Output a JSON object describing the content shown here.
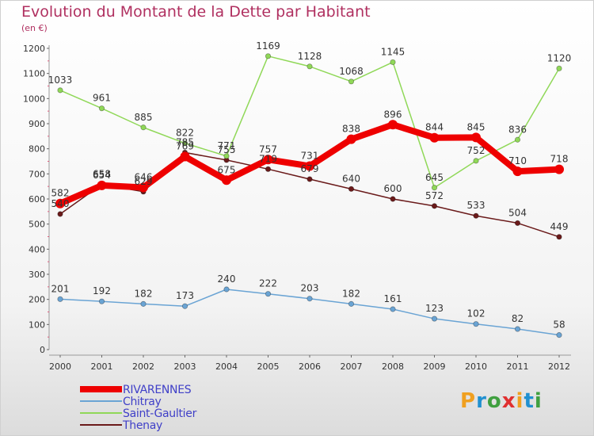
{
  "title": "Evolution du Montant de la Dette par Habitant",
  "unit": "(en €)",
  "logo": {
    "text": "Proxiti",
    "letters": [
      "P",
      "r",
      "o",
      "x",
      "i",
      "t",
      "i"
    ],
    "colors": [
      "#f0a020",
      "#2090d0",
      "#40a040",
      "#e03030",
      "#f0a020",
      "#2090d0",
      "#40a040"
    ]
  },
  "chart_data": {
    "type": "line",
    "categories": [
      "2000",
      "2001",
      "2002",
      "2003",
      "2004",
      "2005",
      "2006",
      "2007",
      "2008",
      "2009",
      "2010",
      "2011",
      "2012"
    ],
    "ylim": [
      0,
      1200
    ],
    "yticks": [
      0,
      100,
      200,
      300,
      400,
      500,
      600,
      700,
      800,
      900,
      1000,
      1100,
      1200
    ],
    "grid": false,
    "legend_position": "bottom-left",
    "series": [
      {
        "name": "Thenay",
        "color": "#6a1a1a",
        "values": [
          540,
          658,
          629,
          785,
          755,
          719,
          679,
          640,
          600,
          572,
          533,
          504,
          449
        ]
      },
      {
        "name": "Saint-Gaultier",
        "color": "#90d858",
        "values": [
          1033,
          961,
          885,
          822,
          771,
          1169,
          1128,
          1068,
          1145,
          645,
          752,
          836,
          1120
        ]
      },
      {
        "name": "Chitray",
        "color": "#6aa4d4",
        "values": [
          201,
          192,
          182,
          173,
          240,
          222,
          203,
          182,
          161,
          123,
          102,
          82,
          58
        ]
      },
      {
        "name": "RIVARENNES",
        "color": "#ee0000",
        "values": [
          582,
          654,
          646,
          769,
          675,
          757,
          731,
          838,
          896,
          844,
          845,
          710,
          718
        ]
      }
    ],
    "legend_order": [
      "RIVARENNES",
      "Chitray",
      "Saint-Gaultier",
      "Thenay"
    ]
  }
}
